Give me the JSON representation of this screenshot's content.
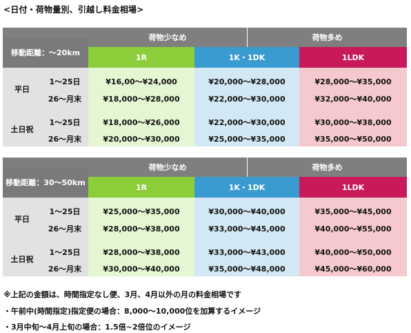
{
  "heading": "<日付・荷物量別、引越し料金相場>",
  "tables": [
    {
      "distance_label": "移動距離：～20km",
      "group_small": "荷物少なめ",
      "group_large": "荷物多め",
      "col_1r": "1R",
      "col_1k": "1K・1DK",
      "col_1ldk": "1LDK",
      "sections": [
        {
          "label": "平日",
          "rows": [
            {
              "period": "1～25日",
              "r1": "¥16,00～¥24,000",
              "k1": "¥20,000～¥28,000",
              "ldk": "¥28,000～¥35,000"
            },
            {
              "period": "26～月末",
              "r1": "¥18,000～¥28,000",
              "k1": "¥22,000～¥30,000",
              "ldk": "¥32,000～¥40,000"
            }
          ]
        },
        {
          "label": "土日祝",
          "rows": [
            {
              "period": "1～25日",
              "r1": "¥18,000～¥26,000",
              "k1": "¥22,000～¥30,000",
              "ldk": "¥30,000～¥38,000"
            },
            {
              "period": "26～月末",
              "r1": "¥20,000～¥30,000",
              "k1": "¥25,000～¥35,000",
              "ldk": "¥35,000～¥50,000"
            }
          ]
        }
      ]
    },
    {
      "distance_label": "移動距離：30～50km",
      "group_small": "荷物少なめ",
      "group_large": "荷物多め",
      "col_1r": "1R",
      "col_1k": "1K・1DK",
      "col_1ldk": "1LDK",
      "sections": [
        {
          "label": "平日",
          "rows": [
            {
              "period": "1～25日",
              "r1": "¥25,000～¥35,000",
              "k1": "¥30,000～¥40,000",
              "ldk": "¥35,000～¥45,000"
            },
            {
              "period": "26～月末",
              "r1": "¥28,000～¥38,000",
              "k1": "¥33,000～¥45,000",
              "ldk": "¥40,000～¥55,000"
            }
          ]
        },
        {
          "label": "土日祝",
          "rows": [
            {
              "period": "1～25日",
              "r1": "¥28,000～¥38,000",
              "k1": "¥33,000～¥43,000",
              "ldk": "¥40,000～¥50,000"
            },
            {
              "period": "26～月末",
              "r1": "¥30,000～¥40,000",
              "k1": "¥35,000～¥48,000",
              "ldk": "¥45,000～¥60,000"
            }
          ]
        }
      ]
    }
  ],
  "notes": [
    "※上記の金額は、時間指定なし便、3月、4月以外の月の料金相場です",
    "・午前中(時間指定)指定便の場合：8,000～10,000位を加算するイメージ",
    "・3月中旬～4月上旬の場合：1.5倍~2倍位のイメージ"
  ]
}
